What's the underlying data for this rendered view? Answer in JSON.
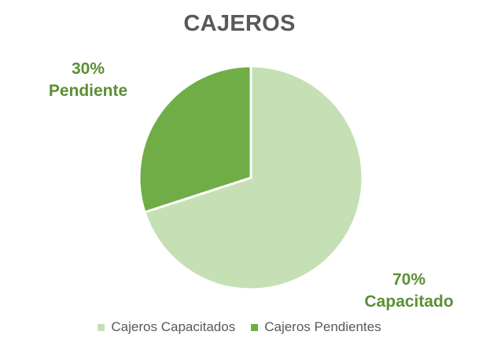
{
  "chart_data": {
    "type": "pie",
    "title": "CAJEROS",
    "slices": [
      {
        "name": "Cajeros Capacitados",
        "value": 70,
        "color": "#c5e0b4"
      },
      {
        "name": "Cajeros Pendientes",
        "value": 30,
        "color": "#70ad47"
      }
    ],
    "data_labels": [
      {
        "percent": "70%",
        "text": "Capacitado"
      },
      {
        "percent": "30%",
        "text": "Pendiente"
      }
    ],
    "legend_position": "bottom",
    "label_color": "#5b8f36"
  }
}
